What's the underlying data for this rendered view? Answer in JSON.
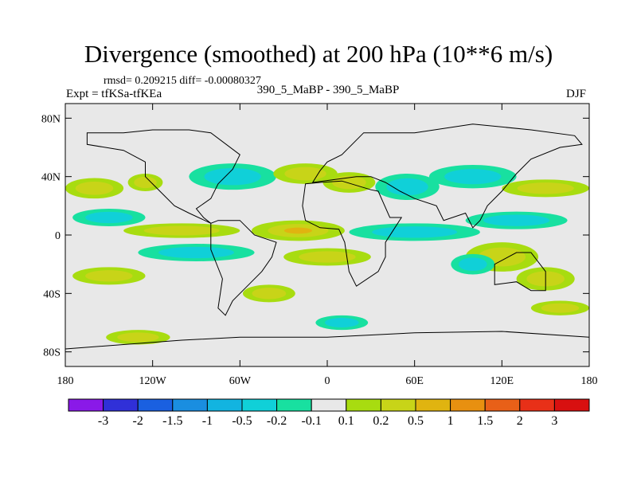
{
  "chart_data": {
    "type": "heatmap",
    "title": "Divergence (smoothed) at 200 hPa (10**6 m/s)",
    "stats_text": "rmsd= 0.209215 diff= -0.00080327",
    "experiment_label": "Expt = tfKSa-tfKEa",
    "cases_label": "390_5_MaBP - 390_5_MaBP",
    "season": "DJF",
    "x_axis": {
      "range": [
        -180,
        180
      ],
      "ticks": [
        -180,
        -120,
        -60,
        0,
        60,
        120,
        180
      ],
      "tick_labels": [
        "180",
        "120W",
        "60W",
        "0",
        "60E",
        "120E",
        "180"
      ]
    },
    "y_axis": {
      "range": [
        -90,
        90
      ],
      "ticks": [
        80,
        40,
        0,
        -40,
        -80
      ],
      "tick_labels": [
        "80N",
        "40N",
        "0",
        "40S",
        "80S"
      ]
    },
    "colorbar": {
      "levels": [
        "-3",
        "-2",
        "-1.5",
        "-1",
        "-0.5",
        "-0.2",
        "-0.1",
        "0.1",
        "0.2",
        "0.5",
        "1",
        "1.5",
        "2",
        "3"
      ],
      "colors": [
        "#8a19e8",
        "#3030d8",
        "#1a60e0",
        "#1a8ee0",
        "#12b4e0",
        "#10d0d8",
        "#18e0a0",
        "#e8e8e8",
        "#a8dc10",
        "#c8d418",
        "#e0b410",
        "#e89010",
        "#e86018",
        "#e83018",
        "#d81010"
      ]
    },
    "features": [
      {
        "lon": -160,
        "lat": 32,
        "rx": 20,
        "ry": 7,
        "cls": 1
      },
      {
        "lon": -125,
        "lat": 36,
        "rx": 12,
        "ry": 6,
        "cls": 1
      },
      {
        "lon": -65,
        "lat": 40,
        "rx": 30,
        "ry": 9,
        "cls": -1
      },
      {
        "lon": -15,
        "lat": 42,
        "rx": 22,
        "ry": 7,
        "cls": 1
      },
      {
        "lon": 15,
        "lat": 36,
        "rx": 18,
        "ry": 7,
        "cls": 1
      },
      {
        "lon": 55,
        "lat": 33,
        "rx": 22,
        "ry": 9,
        "cls": -1
      },
      {
        "lon": 100,
        "lat": 40,
        "rx": 30,
        "ry": 8,
        "cls": -1
      },
      {
        "lon": 150,
        "lat": 32,
        "rx": 30,
        "ry": 6,
        "cls": 1
      },
      {
        "lon": -20,
        "lat": 3,
        "rx": 32,
        "ry": 7,
        "cls": 2
      },
      {
        "lon": 60,
        "lat": 2,
        "rx": 45,
        "ry": 6,
        "cls": -1
      },
      {
        "lon": 130,
        "lat": 10,
        "rx": 35,
        "ry": 6,
        "cls": -1
      },
      {
        "lon": -100,
        "lat": 3,
        "rx": 40,
        "ry": 5,
        "cls": 1
      },
      {
        "lon": -150,
        "lat": 12,
        "rx": 25,
        "ry": 6,
        "cls": -1
      },
      {
        "lon": -90,
        "lat": -12,
        "rx": 40,
        "ry": 6,
        "cls": -1
      },
      {
        "lon": 0,
        "lat": -15,
        "rx": 30,
        "ry": 6,
        "cls": 1
      },
      {
        "lon": 120,
        "lat": -15,
        "rx": 25,
        "ry": 10,
        "cls": 1
      },
      {
        "lon": 150,
        "lat": -30,
        "rx": 20,
        "ry": 8,
        "cls": 1
      },
      {
        "lon": -150,
        "lat": -28,
        "rx": 25,
        "ry": 6,
        "cls": 1
      },
      {
        "lon": 100,
        "lat": -20,
        "rx": 15,
        "ry": 7,
        "cls": -1
      },
      {
        "lon": 160,
        "lat": -50,
        "rx": 20,
        "ry": 5,
        "cls": 1
      },
      {
        "lon": -130,
        "lat": -70,
        "rx": 22,
        "ry": 5,
        "cls": 1
      },
      {
        "lon": 10,
        "lat": -60,
        "rx": 18,
        "ry": 5,
        "cls": -1
      },
      {
        "lon": -40,
        "lat": -40,
        "rx": 18,
        "ry": 6,
        "cls": 1
      }
    ],
    "continents": [
      [
        [
          -165,
          70
        ],
        [
          -140,
          70
        ],
        [
          -120,
          72
        ],
        [
          -95,
          72
        ],
        [
          -80,
          70
        ],
        [
          -60,
          55
        ],
        [
          -65,
          45
        ],
        [
          -75,
          35
        ],
        [
          -80,
          25
        ],
        [
          -90,
          18
        ],
        [
          -85,
          12
        ],
        [
          -80,
          8
        ],
        [
          -95,
          15
        ],
        [
          -105,
          20
        ],
        [
          -115,
          30
        ],
        [
          -125,
          40
        ],
        [
          -125,
          50
        ],
        [
          -140,
          58
        ],
        [
          -165,
          62
        ]
      ],
      [
        [
          -80,
          8
        ],
        [
          -75,
          10
        ],
        [
          -60,
          10
        ],
        [
          -50,
          0
        ],
        [
          -35,
          -5
        ],
        [
          -38,
          -15
        ],
        [
          -45,
          -25
        ],
        [
          -55,
          -35
        ],
        [
          -65,
          -45
        ],
        [
          -70,
          -55
        ],
        [
          -75,
          -50
        ],
        [
          -72,
          -30
        ],
        [
          -80,
          -10
        ],
        [
          -80,
          0
        ]
      ],
      [
        [
          -15,
          35
        ],
        [
          -5,
          36
        ],
        [
          10,
          37
        ],
        [
          30,
          31
        ],
        [
          35,
          30
        ],
        [
          43,
          12
        ],
        [
          51,
          12
        ],
        [
          40,
          -5
        ],
        [
          40,
          -15
        ],
        [
          35,
          -25
        ],
        [
          20,
          -35
        ],
        [
          15,
          -25
        ],
        [
          12,
          -5
        ],
        [
          8,
          4
        ],
        [
          -5,
          5
        ],
        [
          -15,
          10
        ],
        [
          -17,
          20
        ]
      ],
      [
        [
          -10,
          36
        ],
        [
          -5,
          44
        ],
        [
          0,
          50
        ],
        [
          10,
          55
        ],
        [
          25,
          70
        ],
        [
          60,
          70
        ],
        [
          100,
          76
        ],
        [
          140,
          72
        ],
        [
          170,
          68
        ],
        [
          175,
          62
        ],
        [
          160,
          60
        ],
        [
          140,
          52
        ],
        [
          130,
          42
        ],
        [
          120,
          30
        ],
        [
          110,
          20
        ],
        [
          105,
          10
        ],
        [
          100,
          5
        ],
        [
          95,
          15
        ],
        [
          80,
          10
        ],
        [
          75,
          20
        ],
        [
          60,
          25
        ],
        [
          50,
          30
        ],
        [
          40,
          36
        ],
        [
          30,
          40
        ],
        [
          20,
          40
        ]
      ],
      [
        [
          115,
          -20
        ],
        [
          130,
          -12
        ],
        [
          140,
          -12
        ],
        [
          150,
          -25
        ],
        [
          150,
          -38
        ],
        [
          140,
          -38
        ],
        [
          130,
          -32
        ],
        [
          115,
          -34
        ]
      ],
      [
        [
          -180,
          -78
        ],
        [
          -140,
          -75
        ],
        [
          -100,
          -72
        ],
        [
          -60,
          -70
        ],
        [
          0,
          -70
        ],
        [
          60,
          -67
        ],
        [
          120,
          -66
        ],
        [
          180,
          -70
        ],
        [
          180,
          -90
        ],
        [
          -180,
          -90
        ]
      ]
    ]
  }
}
